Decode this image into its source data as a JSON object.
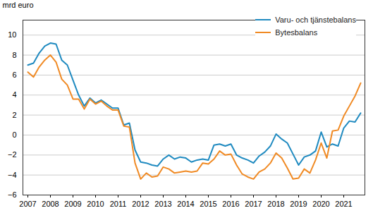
{
  "chart_data": {
    "type": "line",
    "y_label": "mrd euro",
    "categories": [
      "2007",
      null,
      null,
      null,
      "2008",
      null,
      null,
      null,
      "2009",
      null,
      null,
      null,
      "2010",
      null,
      null,
      null,
      "2011",
      null,
      null,
      null,
      "2012",
      null,
      null,
      null,
      "2013",
      null,
      null,
      null,
      "2014",
      null,
      null,
      null,
      "2015",
      null,
      null,
      null,
      "2016",
      null,
      null,
      null,
      "2017",
      null,
      null,
      null,
      "2018",
      null,
      null,
      null,
      "2019",
      null,
      null,
      null,
      "2020",
      null,
      null,
      null,
      "2021",
      null,
      null,
      null
    ],
    "series": [
      {
        "name": "Varu- och tjänstebalans",
        "color": "#1f8ac0",
        "values": [
          7.0,
          7.2,
          8.2,
          8.9,
          9.2,
          9.1,
          7.5,
          7.0,
          5.5,
          4.0,
          2.9,
          3.7,
          3.2,
          3.5,
          3.1,
          2.7,
          2.7,
          1.0,
          1.2,
          -1.5,
          -2.7,
          -2.8,
          -3.0,
          -3.1,
          -2.4,
          -2.0,
          -2.4,
          -2.2,
          -2.3,
          -2.7,
          -2.5,
          -2.4,
          -2.5,
          -1.0,
          -0.9,
          -1.1,
          -0.9,
          -2.0,
          -2.3,
          -2.5,
          -2.8,
          -2.1,
          -1.7,
          -1.1,
          0.1,
          -0.4,
          -0.8,
          -1.9,
          -3.0,
          -2.2,
          -2.0,
          -1.6,
          0.3,
          -1.2,
          -0.9,
          -1.1,
          0.7,
          1.4,
          1.3,
          2.2
        ]
      },
      {
        "name": "Bytesbalans",
        "color": "#f08a24",
        "values": [
          6.3,
          5.8,
          6.8,
          7.5,
          8.0,
          7.3,
          5.6,
          5.0,
          3.6,
          3.6,
          2.6,
          3.6,
          3.1,
          3.4,
          2.9,
          2.5,
          2.5,
          0.9,
          0.8,
          -2.8,
          -4.4,
          -3.8,
          -4.2,
          -4.1,
          -3.2,
          -3.4,
          -3.8,
          -3.7,
          -3.6,
          -3.7,
          -3.6,
          -2.8,
          -2.9,
          -2.4,
          -1.6,
          -2.0,
          -1.9,
          -3.0,
          -3.9,
          -4.2,
          -4.4,
          -3.7,
          -3.4,
          -2.8,
          -1.8,
          -2.3,
          -3.3,
          -4.4,
          -4.3,
          -3.4,
          -3.8,
          -2.5,
          -0.8,
          -2.3,
          0.4,
          0.5,
          1.9,
          2.9,
          3.9,
          5.2
        ]
      }
    ],
    "ylim": [
      -6,
      11.5
    ],
    "yticks": [
      -6,
      -4,
      -2,
      0,
      2,
      4,
      6,
      8,
      10
    ],
    "grid": true,
    "legend": "top-right"
  }
}
